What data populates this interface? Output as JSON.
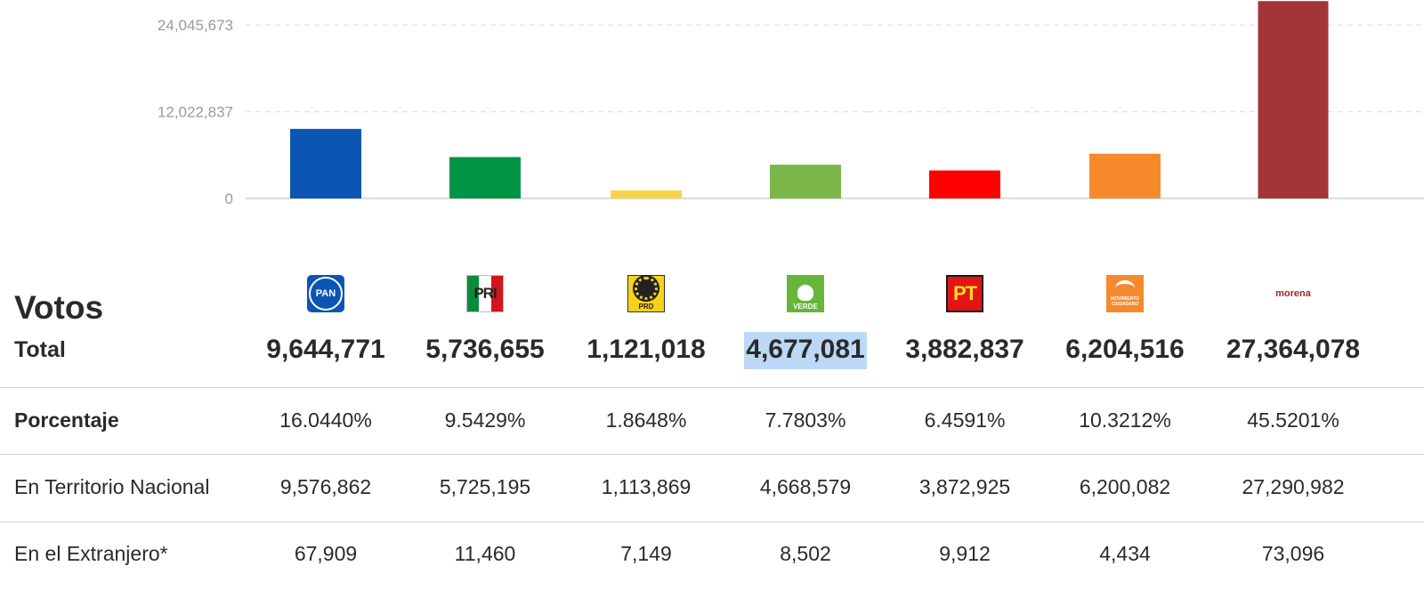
{
  "chart_data": {
    "type": "bar",
    "categories": [
      "PAN",
      "PRI",
      "PRD",
      "VERDE",
      "PT",
      "MOVIMIENTO CIUDADANO",
      "morena"
    ],
    "values": [
      9644771,
      5736655,
      1121018,
      4677081,
      3882837,
      6204516,
      27364078
    ],
    "colors": [
      "#0b56b3",
      "#009444",
      "#f7d54a",
      "#7ab648",
      "#ff0000",
      "#f6892c",
      "#a43537"
    ],
    "y_ticks": [
      0,
      12022837,
      24045673
    ],
    "y_tick_labels": [
      "0",
      "12,022,837",
      "24,045,673"
    ],
    "ylim": [
      0,
      26900000
    ],
    "grid": true,
    "legend": false
  },
  "table": {
    "votos_title": "Votos",
    "total_label": "Total",
    "totals": [
      "9,644,771",
      "5,736,655",
      "1,121,018",
      "4,677,081",
      "3,882,837",
      "6,204,516",
      "27,364,078"
    ],
    "highlighted_total_index": 3,
    "logos": [
      {
        "icon": "pan-logo-icon",
        "text": "PAN"
      },
      {
        "icon": "pri-logo-icon",
        "text": "PRI"
      },
      {
        "icon": "prd-logo-icon",
        "text": "PRD"
      },
      {
        "icon": "verde-logo-icon",
        "text": "VERDE"
      },
      {
        "icon": "pt-logo-icon",
        "text": "PT"
      },
      {
        "icon": "movimiento-ciudadano-logo-icon",
        "text": "MOVIMIENTO CIUDADANO"
      },
      {
        "icon": "morena-logo-icon",
        "text": "morena"
      }
    ],
    "rows": [
      {
        "label": "Porcentaje",
        "bold": true,
        "values": [
          "16.0440%",
          "9.5429%",
          "1.8648%",
          "7.7803%",
          "6.4591%",
          "10.3212%",
          "45.5201%"
        ]
      },
      {
        "label": "En Territorio Nacional",
        "bold": false,
        "values": [
          "9,576,862",
          "5,725,195",
          "1,113,869",
          "4,668,579",
          "3,872,925",
          "6,200,082",
          "27,290,982"
        ]
      },
      {
        "label": "En el Extranjero*",
        "bold": false,
        "values": [
          "67,909",
          "11,460",
          "7,149",
          "8,502",
          "9,912",
          "4,434",
          "73,096"
        ]
      }
    ]
  }
}
